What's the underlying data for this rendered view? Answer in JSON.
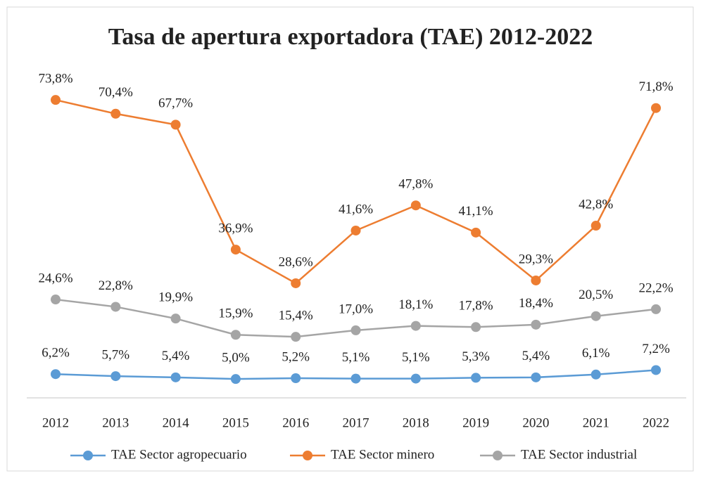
{
  "chart_data": {
    "type": "line",
    "title": "Tasa de apertura exportadora (TAE) 2012-2022",
    "categories": [
      "2012",
      "2013",
      "2014",
      "2015",
      "2016",
      "2017",
      "2018",
      "2019",
      "2020",
      "2021",
      "2022"
    ],
    "series": [
      {
        "name": "TAE Sector agropecuario",
        "color": "#5b9bd5",
        "values": [
          6.2,
          5.7,
          5.4,
          5.0,
          5.2,
          5.1,
          5.1,
          5.3,
          5.4,
          6.1,
          7.2
        ],
        "value_labels": [
          "6,2%",
          "5,7%",
          "5,4%",
          "5,0%",
          "5,2%",
          "5,1%",
          "5,1%",
          "5,3%",
          "5,4%",
          "6,1%",
          "7,2%"
        ]
      },
      {
        "name": "TAE Sector minero",
        "color": "#ed7d31",
        "values": [
          73.8,
          70.4,
          67.7,
          36.9,
          28.6,
          41.6,
          47.8,
          41.1,
          29.3,
          42.8,
          71.8
        ],
        "value_labels": [
          "73,8%",
          "70,4%",
          "67,7%",
          "36,9%",
          "28,6%",
          "41,6%",
          "47,8%",
          "41,1%",
          "29,3%",
          "42,8%",
          "71,8%"
        ]
      },
      {
        "name": "TAE Sector industrial",
        "color": "#a5a5a5",
        "values": [
          24.6,
          22.8,
          19.9,
          15.9,
          15.4,
          17.0,
          18.1,
          17.8,
          18.4,
          20.5,
          22.2
        ],
        "value_labels": [
          "24,6%",
          "22,8%",
          "19,9%",
          "15,9%",
          "15,4%",
          "17,0%",
          "18,1%",
          "17,8%",
          "18,4%",
          "20,5%",
          "22,2%"
        ]
      }
    ],
    "legend": "bottom"
  }
}
